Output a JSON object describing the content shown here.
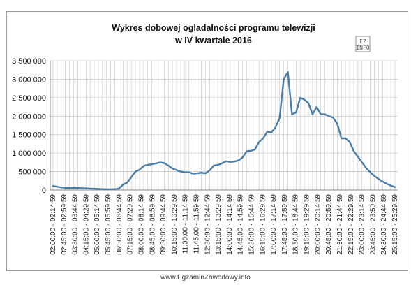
{
  "footer_text": "www.EgzaminZawodowy.info",
  "logo": {
    "line1": "EZ",
    "line2": "INFO"
  },
  "colors": {
    "line": "#4a7ea8",
    "grid": "#c8c8c8",
    "axis": "#888888"
  },
  "chart_data": {
    "type": "line",
    "title": [
      "Wykres dobowej ogladalności programu telewizji",
      "w IV kwartale 2016"
    ],
    "xlabel": "",
    "ylabel": "",
    "ylim": [
      0,
      3500000
    ],
    "y_ticks": [
      "0",
      "500 000",
      "1 000 000",
      "1 500 000",
      "2 000 000",
      "2 500 000",
      "3 000 000",
      "3 500 000"
    ],
    "grid": true,
    "legend": "none",
    "x_labels": [
      "02:00:00 - 02:14:59",
      "02:45:00 - 02:59:59",
      "03:30:00 - 03:44:59",
      "04:15:00 - 04:29:59",
      "05:00:00 - 05:14:59",
      "05:45:00 - 05:59:59",
      "06:30:00 - 06:44:59",
      "07:15:00 - 07:29:59",
      "08:00:00 - 08:14:59",
      "08:45:00 - 08:59:59",
      "09:30:00 - 09:44:59",
      "10:15:00 - 10:29:59",
      "11:00:00 - 11:14:59",
      "11:45:00 - 11:59:59",
      "12:30:00 - 12:44:59",
      "13:15:00 - 13:29:59",
      "14:00:00 - 14:14:59",
      "14:45:00 - 14:59:59",
      "15:30:00 - 15:44:59",
      "16:15:00 - 16:29:59",
      "17:00:00 - 17:14:59",
      "17:45:00 - 17:59:59",
      "18:30:00 - 18:44:59",
      "19:15:00 - 19:29:59",
      "20:00:00 - 20:14:59",
      "20:45:00 - 20:59:59",
      "21:30:00 - 21:44:59",
      "22:15:00 - 22:29:59",
      "23:00:00 - 23:14:59",
      "23:45:00 - 23:59:59",
      "24:30:00 - 24:44:59",
      "25:15:00 - 25:29:59"
    ],
    "series": [
      {
        "values": [
          110000,
          90000,
          70000,
          60000,
          60000,
          60000,
          55000,
          50000,
          45000,
          40000,
          35000,
          30000,
          25000,
          20000,
          20000,
          25000,
          40000,
          150000,
          200000,
          350000,
          500000,
          550000,
          650000,
          680000,
          700000,
          720000,
          750000,
          730000,
          660000,
          580000,
          540000,
          500000,
          480000,
          480000,
          440000,
          450000,
          470000,
          450000,
          530000,
          660000,
          680000,
          720000,
          780000,
          760000,
          770000,
          800000,
          880000,
          1050000,
          1060000,
          1100000,
          1300000,
          1400000,
          1580000,
          1560000,
          1700000,
          1950000,
          3000000,
          3200000,
          2050000,
          2100000,
          2500000,
          2450000,
          2350000,
          2050000,
          2250000,
          2050000,
          2050000,
          2000000,
          1960000,
          1800000,
          1400000,
          1400000,
          1300000,
          1050000,
          900000,
          750000,
          600000,
          480000,
          380000,
          300000,
          230000,
          170000,
          120000,
          80000
        ]
      }
    ]
  }
}
